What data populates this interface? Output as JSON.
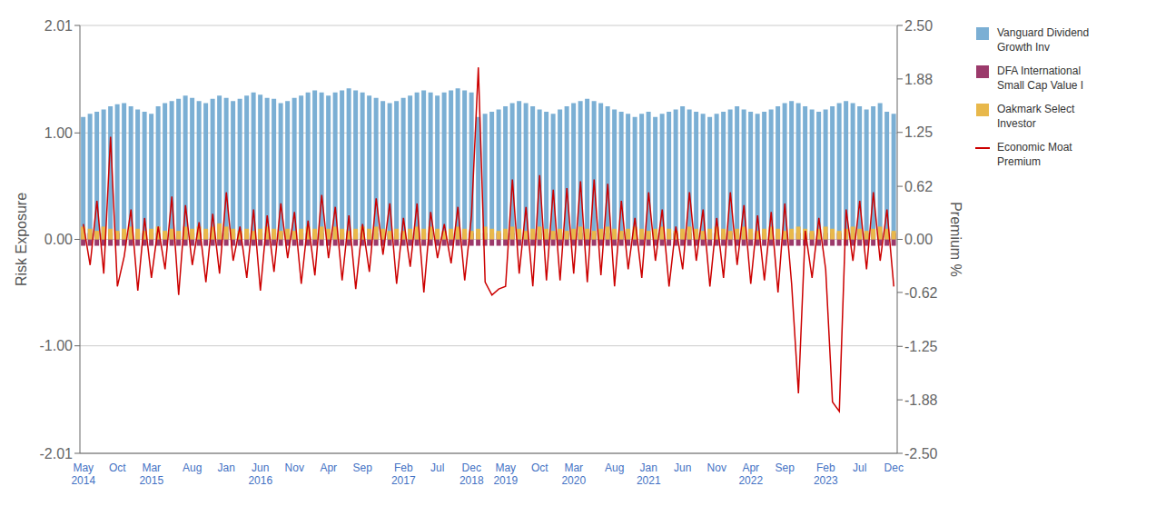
{
  "chart_data": {
    "type": "bar",
    "ylabel": "Risk Exposure",
    "y2label": "Premium %",
    "ylim": [
      -2.01,
      2.01
    ],
    "yticks": [
      -2.01,
      {
        "value": -1,
        "label": "-1.00"
      },
      {
        "value": 0,
        "label": "0.00"
      },
      {
        "value": 1,
        "label": "1.00"
      },
      2.01
    ],
    "y2lim": [
      -2.5,
      2.5
    ],
    "y2ticks": [
      {
        "value": -2.5,
        "label": "-2.50"
      },
      {
        "value": -1.875,
        "label": "-1.88"
      },
      -1.25,
      -0.62,
      {
        "value": 0,
        "label": "0.00"
      },
      0.62,
      1.25,
      {
        "value": 1.875,
        "label": "1.88"
      },
      {
        "value": 2.5,
        "label": "2.50"
      }
    ],
    "grid": true,
    "legend": "right",
    "categories": [
      "May\n2014",
      null,
      null,
      null,
      null,
      "Oct",
      null,
      null,
      null,
      null,
      "Mar\n2015",
      null,
      null,
      null,
      null,
      null,
      "Aug",
      null,
      null,
      null,
      null,
      "Jan",
      null,
      null,
      null,
      null,
      "Jun\n2016",
      null,
      null,
      null,
      null,
      "Nov",
      null,
      null,
      null,
      null,
      "Apr",
      null,
      null,
      null,
      null,
      "Sep",
      null,
      null,
      null,
      null,
      null,
      "Feb\n2017",
      null,
      null,
      null,
      null,
      "Jul",
      null,
      null,
      null,
      null,
      "Dec\n2018",
      null,
      null,
      null,
      null,
      "May\n2019",
      null,
      null,
      null,
      null,
      "Oct",
      null,
      null,
      null,
      null,
      "Mar\n2020",
      null,
      null,
      null,
      null,
      null,
      "Aug",
      null,
      null,
      null,
      null,
      "Jan\n2021",
      null,
      null,
      null,
      null,
      "Jun",
      null,
      null,
      null,
      null,
      "Nov",
      null,
      null,
      null,
      null,
      "Apr\n2022",
      null,
      null,
      null,
      null,
      "Sep",
      null,
      null,
      null,
      null,
      null,
      "Feb\n2023",
      null,
      null,
      null,
      null,
      "Jul",
      null,
      null,
      null,
      null,
      "Dec"
    ],
    "series": [
      {
        "name": "Vanguard Dividend\nGrowth Inv",
        "type": "bar",
        "color": "#7bafd4",
        "values": [
          1.15,
          1.18,
          1.2,
          1.22,
          1.25,
          1.27,
          1.28,
          1.25,
          1.22,
          1.2,
          1.18,
          1.25,
          1.28,
          1.3,
          1.32,
          1.35,
          1.33,
          1.3,
          1.28,
          1.32,
          1.35,
          1.33,
          1.3,
          1.32,
          1.35,
          1.38,
          1.36,
          1.33,
          1.32,
          1.28,
          1.3,
          1.33,
          1.35,
          1.38,
          1.4,
          1.38,
          1.35,
          1.38,
          1.4,
          1.42,
          1.4,
          1.38,
          1.35,
          1.33,
          1.3,
          1.28,
          1.3,
          1.33,
          1.35,
          1.38,
          1.4,
          1.38,
          1.35,
          1.38,
          1.4,
          1.42,
          1.4,
          1.38,
          1.15,
          1.18,
          1.2,
          1.22,
          1.25,
          1.28,
          1.3,
          1.28,
          1.25,
          1.22,
          1.2,
          1.18,
          1.22,
          1.25,
          1.28,
          1.3,
          1.32,
          1.3,
          1.28,
          1.25,
          1.22,
          1.2,
          1.18,
          1.15,
          1.18,
          1.2,
          1.15,
          1.18,
          1.2,
          1.22,
          1.25,
          1.22,
          1.2,
          1.18,
          1.15,
          1.18,
          1.2,
          1.22,
          1.25,
          1.22,
          1.2,
          1.18,
          1.2,
          1.22,
          1.25,
          1.28,
          1.3,
          1.28,
          1.25,
          1.22,
          1.2,
          1.22,
          1.25,
          1.28,
          1.3,
          1.28,
          1.25,
          1.22,
          1.25,
          1.28,
          1.2,
          1.18
        ]
      },
      {
        "name": "DFA International\nSmall Cap Value I",
        "type": "bar",
        "color": "#9b3a6b",
        "values": [
          0.06,
          0.06,
          0.06,
          0.06,
          0.06,
          0.06,
          0.06,
          0.06,
          0.06,
          0.06,
          0.06,
          0.06,
          0.06,
          0.06,
          0.06,
          0.06,
          0.06,
          0.06,
          0.06,
          0.06,
          0.06,
          0.06,
          0.06,
          0.06,
          0.06,
          0.06,
          0.06,
          0.06,
          0.06,
          0.06,
          0.06,
          0.06,
          0.06,
          0.06,
          0.06,
          0.06,
          0.06,
          0.06,
          0.06,
          0.06,
          0.06,
          0.06,
          0.06,
          0.06,
          0.06,
          0.06,
          0.06,
          0.06,
          0.06,
          0.06,
          0.06,
          0.06,
          0.06,
          0.06,
          0.06,
          0.06,
          0.06,
          0.06,
          0.06,
          0.06,
          0.06,
          0.06,
          0.06,
          0.06,
          0.06,
          0.06,
          0.06,
          0.06,
          0.06,
          0.06,
          0.06,
          0.06,
          0.06,
          0.06,
          0.06,
          0.06,
          0.06,
          0.06,
          0.06,
          0.06,
          0.06,
          0.06,
          0.06,
          0.06,
          0.06,
          0.06,
          0.06,
          0.06,
          0.06,
          0.06,
          0.06,
          0.06,
          0.06,
          0.06,
          0.06,
          0.06,
          0.06,
          0.06,
          0.06,
          0.06,
          0.06,
          0.06,
          0.06,
          0.06,
          0.06,
          0.06,
          0.06,
          0.06,
          0.06,
          0.06,
          0.06,
          0.06,
          0.06,
          0.06,
          0.06,
          0.06,
          0.06,
          0.06,
          0.06,
          0.06
        ]
      },
      {
        "name": "DFA International\nSmall Cap Value I",
        "type": "bar",
        "color": "#9b3a6b",
        "values": [
          -0.06,
          -0.06,
          -0.06,
          -0.06,
          -0.06,
          -0.06,
          -0.06,
          -0.06,
          -0.06,
          -0.06,
          -0.06,
          -0.06,
          -0.06,
          -0.06,
          -0.06,
          -0.06,
          -0.06,
          -0.06,
          -0.06,
          -0.06,
          -0.06,
          -0.06,
          -0.06,
          -0.06,
          -0.06,
          -0.06,
          -0.06,
          -0.06,
          -0.06,
          -0.06,
          -0.06,
          -0.06,
          -0.06,
          -0.06,
          -0.06,
          -0.06,
          -0.06,
          -0.06,
          -0.06,
          -0.06,
          -0.06,
          -0.06,
          -0.06,
          -0.06,
          -0.06,
          -0.06,
          -0.06,
          -0.06,
          -0.06,
          -0.06,
          -0.06,
          -0.06,
          -0.06,
          -0.06,
          -0.06,
          -0.06,
          -0.06,
          -0.06,
          -0.06,
          -0.06,
          -0.06,
          -0.06,
          -0.06,
          -0.06,
          -0.06,
          -0.06,
          -0.06,
          -0.06,
          -0.06,
          -0.06,
          -0.06,
          -0.06,
          -0.06,
          -0.06,
          -0.06,
          -0.06,
          -0.06,
          -0.06,
          -0.06,
          -0.06,
          -0.06,
          -0.06,
          -0.06,
          -0.06,
          -0.06,
          -0.06,
          -0.06,
          -0.06,
          -0.06,
          -0.06,
          -0.06,
          -0.06,
          -0.06,
          -0.06,
          -0.06,
          -0.06,
          -0.06,
          -0.06,
          -0.06,
          -0.06,
          -0.06,
          -0.06,
          -0.06,
          -0.06,
          -0.06,
          -0.06,
          -0.06,
          -0.06,
          -0.06,
          -0.06,
          -0.06,
          -0.06,
          -0.06,
          -0.06,
          -0.06,
          -0.06,
          -0.06,
          -0.06,
          -0.06,
          -0.06
        ]
      },
      {
        "name": "Oakmark Select\nInvestor",
        "type": "bar",
        "color": "#e8b84b",
        "values": [
          0.12,
          0.1,
          0.08,
          0.12,
          0.1,
          0.08,
          0.1,
          0.12,
          0.1,
          0.08,
          0.1,
          0.12,
          0.08,
          0.1,
          0.08,
          0.12,
          0.1,
          0.12,
          0.1,
          0.12,
          0.15,
          0.12,
          0.1,
          0.08,
          0.1,
          0.08,
          0.1,
          0.12,
          0.1,
          0.08,
          0.1,
          0.08,
          0.1,
          0.12,
          0.1,
          0.12,
          0.1,
          0.12,
          0.1,
          0.08,
          0.1,
          0.12,
          0.1,
          0.12,
          0.1,
          0.08,
          0.1,
          0.08,
          0.1,
          0.12,
          0.1,
          0.12,
          0.1,
          0.08,
          0.1,
          0.12,
          0.1,
          0.08,
          0.1,
          0.12,
          0.1,
          0.08,
          0.1,
          0.12,
          0.1,
          0.08,
          0.1,
          0.12,
          0.1,
          0.08,
          0.1,
          0.08,
          0.1,
          0.12,
          0.1,
          0.08,
          0.1,
          0.12,
          0.1,
          0.08,
          0.1,
          0.12,
          0.1,
          0.08,
          0.1,
          0.12,
          0.1,
          0.08,
          0.1,
          0.12,
          0.1,
          0.08,
          0.1,
          0.12,
          0.1,
          0.08,
          0.1,
          0.12,
          0.1,
          0.08,
          0.1,
          0.12,
          0.1,
          0.08,
          0.1,
          0.12,
          0.1,
          0.08,
          0.1,
          0.12,
          0.1,
          0.08,
          0.1,
          0.12,
          0.1,
          0.08,
          0.1,
          0.12,
          0.1,
          0.08
        ]
      },
      {
        "name": "Economic Moat\nPremium",
        "type": "line",
        "color": "#cc0000",
        "axis": "y2",
        "values": [
          0.18,
          -0.3,
          0.45,
          -0.4,
          1.2,
          -0.55,
          -0.2,
          0.35,
          -0.6,
          0.25,
          -0.45,
          0.15,
          -0.35,
          0.5,
          -0.65,
          0.4,
          -0.3,
          0.2,
          -0.5,
          0.3,
          -0.4,
          0.55,
          -0.25,
          0.15,
          -0.45,
          0.35,
          -0.6,
          0.28,
          -0.38,
          0.42,
          -0.22,
          0.32,
          -0.52,
          0.22,
          -0.42,
          0.52,
          -0.22,
          0.38,
          -0.48,
          0.28,
          -0.58,
          0.18,
          -0.38,
          0.48,
          -0.18,
          0.42,
          -0.52,
          0.25,
          -0.32,
          0.42,
          -0.62,
          0.32,
          -0.22,
          0.18,
          -0.28,
          0.38,
          -0.48,
          0.28,
          2.01,
          -0.5,
          -0.65,
          -0.58,
          -0.55,
          0.7,
          -0.4,
          0.38,
          -0.55,
          0.75,
          -0.48,
          0.58,
          -0.48,
          0.6,
          -0.4,
          0.68,
          -0.5,
          0.7,
          -0.42,
          0.65,
          -0.55,
          0.45,
          -0.35,
          0.25,
          -0.45,
          0.55,
          -0.25,
          0.35,
          -0.55,
          0.15,
          -0.35,
          0.55,
          -0.25,
          0.35,
          -0.55,
          0.25,
          -0.45,
          0.55,
          -0.3,
          0.4,
          -0.52,
          0.28,
          -0.48,
          0.32,
          -0.62,
          0.42,
          -0.52,
          -1.8,
          0.1,
          -0.45,
          0.25,
          -0.35,
          -1.9,
          -2.01,
          0.35,
          -0.25,
          0.45,
          -0.35,
          0.55,
          -0.25,
          0.35,
          -0.55
        ]
      }
    ]
  }
}
